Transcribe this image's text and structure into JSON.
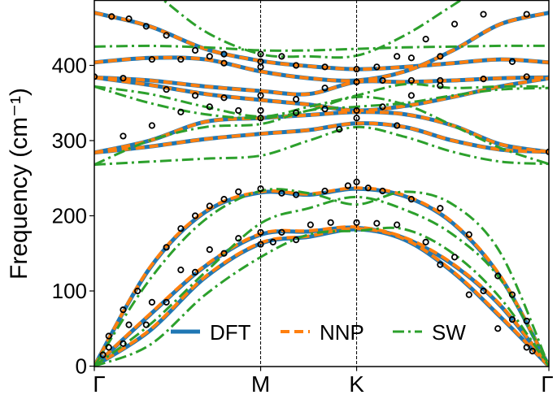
{
  "chart_data": {
    "type": "line",
    "title": "",
    "xlabel": "",
    "ylabel": "Frequency (cm⁻¹)",
    "ylim": [
      0,
      487
    ],
    "yticks": [
      0,
      100,
      200,
      300,
      400
    ],
    "xticks": [
      {
        "k": 0,
        "label": "Γ"
      },
      {
        "k": 0.577,
        "label": "M"
      },
      {
        "k": 0.91,
        "label": "K"
      },
      {
        "k": 1.577,
        "label": "Γ"
      }
    ],
    "xlim": [
      0,
      1.577
    ],
    "grid": false,
    "legend_placement": "lower-center",
    "k_samples": [
      0,
      0.192,
      0.385,
      0.577,
      0.744,
      0.91,
      1.077,
      1.244,
      1.41,
      1.577
    ],
    "series": [
      {
        "name": "DFT",
        "color": "#1f77b4",
        "style": "solid",
        "bands": [
          [
            0,
            130,
            205,
            231,
            228,
            236,
            226,
            190,
            118,
            0
          ],
          [
            0,
            68,
            133,
            175,
            179,
            184,
            170,
            135,
            80,
            0
          ],
          [
            0,
            47,
            118,
            163,
            172,
            182,
            168,
            125,
            65,
            0
          ],
          [
            470,
            452,
            422,
            406,
            399,
            395,
            398,
            403,
            408,
            404
          ],
          [
            404,
            410,
            408,
            392,
            383,
            380,
            392,
            420,
            455,
            470
          ],
          [
            384,
            380,
            372,
            366,
            362,
            378,
            378,
            380,
            383,
            384
          ],
          [
            384,
            374,
            362,
            354,
            348,
            340,
            346,
            358,
            372,
            383
          ],
          [
            284,
            300,
            325,
            330,
            334,
            338,
            335,
            320,
            295,
            285
          ],
          [
            284,
            292,
            302,
            309,
            314,
            323,
            318,
            300,
            288,
            285
          ]
        ]
      },
      {
        "name": "NNP",
        "color": "#ff7f0e",
        "style": "dashed",
        "bands": [
          [
            0,
            131,
            206,
            232,
            229,
            237,
            227,
            191,
            119,
            0
          ],
          [
            0,
            69,
            134,
            176,
            180,
            185,
            171,
            136,
            81,
            0
          ],
          [
            0,
            48,
            119,
            164,
            173,
            183,
            169,
            126,
            66,
            0
          ],
          [
            470,
            452,
            422,
            406,
            399,
            395,
            398,
            403,
            408,
            404
          ],
          [
            404,
            410,
            408,
            392,
            383,
            380,
            392,
            420,
            455,
            470
          ],
          [
            384,
            380,
            372,
            366,
            362,
            378,
            378,
            380,
            383,
            384
          ],
          [
            384,
            374,
            362,
            354,
            348,
            340,
            346,
            358,
            372,
            383
          ],
          [
            284,
            300,
            325,
            330,
            334,
            338,
            335,
            320,
            295,
            285
          ],
          [
            284,
            292,
            302,
            309,
            314,
            323,
            318,
            300,
            288,
            285
          ]
        ]
      },
      {
        "name": "SW",
        "color": "#2ca02c",
        "style": "dashdot",
        "bands": [
          [
            0,
            115,
            195,
            233,
            230,
            215,
            232,
            215,
            150,
            0
          ],
          [
            0,
            55,
            125,
            190,
            210,
            225,
            208,
            175,
            115,
            0
          ],
          [
            0,
            28,
            95,
            145,
            175,
            180,
            182,
            150,
            90,
            0
          ],
          [
            540,
            500,
            445,
            415,
            412,
            413,
            440,
            480,
            520,
            540
          ],
          [
            425,
            426,
            424,
            420,
            420,
            422,
            424,
            425,
            426,
            426
          ],
          [
            372,
            362,
            345,
            332,
            345,
            360,
            375,
            370,
            372,
            372
          ],
          [
            372,
            350,
            335,
            330,
            340,
            358,
            348,
            320,
            290,
            269
          ],
          [
            268,
            300,
            318,
            322,
            340,
            345,
            350,
            360,
            368,
            370
          ],
          [
            268,
            272,
            276,
            280,
            300,
            318,
            305,
            285,
            272,
            269
          ]
        ]
      }
    ],
    "scatter": {
      "color": "#000000",
      "marker": "open-circle",
      "points": [
        [
          0.05,
          40
        ],
        [
          0.1,
          75
        ],
        [
          0.15,
          100
        ],
        [
          0.25,
          158
        ],
        [
          0.3,
          183
        ],
        [
          0.35,
          200
        ],
        [
          0.4,
          213
        ],
        [
          0.45,
          222
        ],
        [
          0.5,
          232
        ],
        [
          0.577,
          236
        ],
        [
          0.65,
          230
        ],
        [
          0.7,
          228
        ],
        [
          0.8,
          233
        ],
        [
          0.88,
          240
        ],
        [
          0.91,
          245
        ],
        [
          0.95,
          237
        ],
        [
          1.0,
          233
        ],
        [
          1.1,
          222
        ],
        [
          1.2,
          210
        ],
        [
          1.3,
          175
        ],
        [
          1.4,
          120
        ],
        [
          1.45,
          95
        ],
        [
          1.5,
          60
        ],
        [
          0.05,
          25
        ],
        [
          0.12,
          55
        ],
        [
          0.2,
          85
        ],
        [
          0.3,
          128
        ],
        [
          0.4,
          155
        ],
        [
          0.5,
          170
        ],
        [
          0.577,
          178
        ],
        [
          0.65,
          178
        ],
        [
          0.75,
          188
        ],
        [
          0.82,
          191
        ],
        [
          0.91,
          191
        ],
        [
          0.98,
          190
        ],
        [
          1.05,
          188
        ],
        [
          1.15,
          165
        ],
        [
          1.25,
          145
        ],
        [
          1.35,
          100
        ],
        [
          1.45,
          62
        ],
        [
          1.52,
          20
        ],
        [
          0.03,
          15
        ],
        [
          0.1,
          30
        ],
        [
          0.18,
          55
        ],
        [
          0.25,
          85
        ],
        [
          0.35,
          125
        ],
        [
          0.45,
          150
        ],
        [
          0.577,
          162
        ],
        [
          0.62,
          165
        ],
        [
          0.7,
          168
        ],
        [
          1.2,
          135
        ],
        [
          1.3,
          95
        ],
        [
          1.4,
          50
        ],
        [
          1.5,
          25
        ],
        [
          0.06,
          465
        ],
        [
          0.12,
          462
        ],
        [
          0.18,
          452
        ],
        [
          0.25,
          440
        ],
        [
          0.35,
          420
        ],
        [
          0.4,
          412
        ],
        [
          0.45,
          415
        ],
        [
          0.577,
          415
        ],
        [
          0.577,
          405
        ],
        [
          0.65,
          412
        ],
        [
          0.7,
          400
        ],
        [
          0.8,
          398
        ],
        [
          0.91,
          395
        ],
        [
          0.98,
          398
        ],
        [
          1.05,
          412
        ],
        [
          1.15,
          435
        ],
        [
          1.25,
          455
        ],
        [
          1.35,
          468
        ],
        [
          1.5,
          468
        ],
        [
          0.0,
          385
        ],
        [
          0.1,
          383
        ],
        [
          0.25,
          368
        ],
        [
          0.35,
          360
        ],
        [
          0.45,
          357
        ],
        [
          0.577,
          360
        ],
        [
          0.7,
          355
        ],
        [
          0.8,
          370
        ],
        [
          0.91,
          378
        ],
        [
          1.0,
          380
        ],
        [
          1.1,
          380
        ],
        [
          1.2,
          380
        ],
        [
          1.35,
          382
        ],
        [
          1.5,
          385
        ],
        [
          0.2,
          408
        ],
        [
          0.3,
          408
        ],
        [
          0.45,
          403
        ],
        [
          0.577,
          398
        ],
        [
          1.1,
          410
        ],
        [
          1.2,
          412
        ],
        [
          1.45,
          405
        ],
        [
          0.4,
          345
        ],
        [
          0.5,
          340
        ],
        [
          0.577,
          340
        ],
        [
          0.7,
          337
        ],
        [
          0.8,
          342
        ],
        [
          0.91,
          340
        ],
        [
          1.0,
          345
        ],
        [
          1.1,
          360
        ],
        [
          1.2,
          373
        ],
        [
          0.1,
          306
        ],
        [
          0.2,
          320
        ],
        [
          0.3,
          338
        ],
        [
          0.577,
          330
        ],
        [
          0.91,
          330
        ],
        [
          1.05,
          320
        ],
        [
          1.577,
          285
        ],
        [
          0.85,
          315
        ]
      ]
    },
    "legend": [
      {
        "label": "DFT",
        "color": "#1f77b4",
        "style": "solid"
      },
      {
        "label": "NNP",
        "color": "#ff7f0e",
        "style": "dashed"
      },
      {
        "label": "SW",
        "color": "#2ca02c",
        "style": "dashdot"
      }
    ]
  }
}
